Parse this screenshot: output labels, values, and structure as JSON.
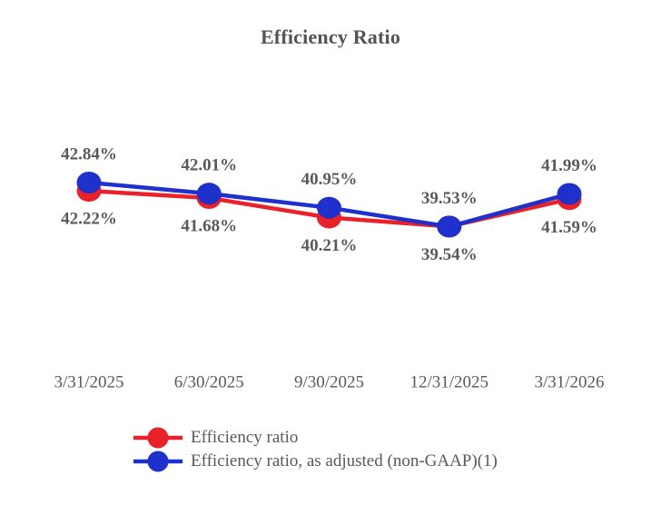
{
  "chart_data": {
    "type": "line",
    "title": "Efficiency Ratio",
    "categories": [
      "3/31/2025",
      "6/30/2025",
      "9/30/2025",
      "12/31/2025",
      "3/31/2026"
    ],
    "series": [
      {
        "name": "Efficiency ratio",
        "color": "#EA2128",
        "values": [
          42.22,
          41.68,
          40.21,
          39.54,
          41.59
        ],
        "labels": [
          "42.22%",
          "41.68%",
          "40.21%",
          "39.54%",
          "41.59%"
        ],
        "label_position": "below"
      },
      {
        "name": "Efficiency ratio, as adjusted (non-GAAP)(1)",
        "color": "#1E31CC",
        "values": [
          42.84,
          42.01,
          40.95,
          39.53,
          41.99
        ],
        "labels": [
          "42.84%",
          "42.01%",
          "40.95%",
          "39.53%",
          "41.99%"
        ],
        "label_position": "above"
      }
    ],
    "legend_position": "bottom",
    "grid": false,
    "axes_drawn": false,
    "label_color": "#595959",
    "axis_label_color": "#595959"
  }
}
